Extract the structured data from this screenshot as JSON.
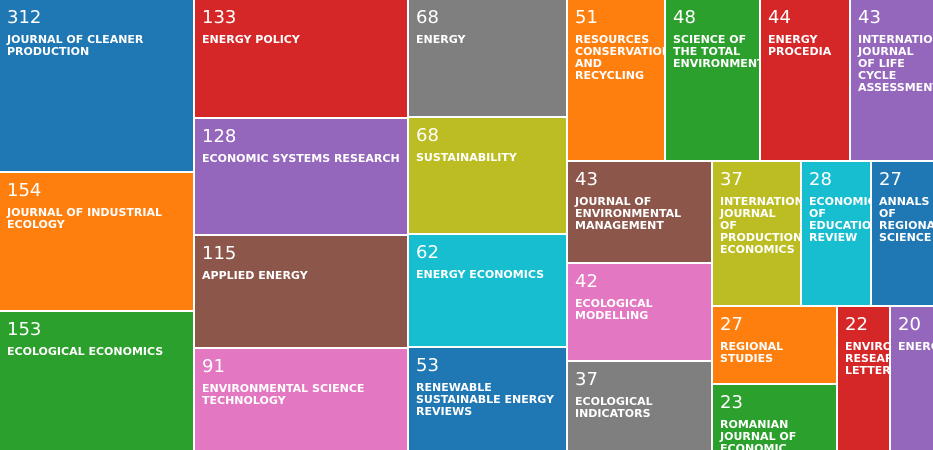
{
  "chart_data": {
    "type": "treemap",
    "items": [
      {
        "label": "JOURNAL OF CLEANER PRODUCTION",
        "value": 312,
        "color": "#1f77b4"
      },
      {
        "label": "JOURNAL OF INDUSTRIAL ECOLOGY",
        "value": 154,
        "color": "#ff7f0e"
      },
      {
        "label": "ECOLOGICAL ECONOMICS",
        "value": 153,
        "color": "#2ca02c"
      },
      {
        "label": "ENERGY POLICY",
        "value": 133,
        "color": "#d62728"
      },
      {
        "label": "ECONOMIC SYSTEMS RESEARCH",
        "value": 128,
        "color": "#9467bd"
      },
      {
        "label": "APPLIED ENERGY",
        "value": 115,
        "color": "#8c564b"
      },
      {
        "label": "ENVIRONMENTAL SCIENCE TECHNOLOGY",
        "value": 91,
        "color": "#e377c2"
      },
      {
        "label": "ENERGY",
        "value": 68,
        "color": "#7f7f7f"
      },
      {
        "label": "SUSTAINABILITY",
        "value": 68,
        "color": "#bcbd22"
      },
      {
        "label": "ENERGY ECONOMICS",
        "value": 62,
        "color": "#17becf"
      },
      {
        "label": "RENEWABLE SUSTAINABLE ENERGY REVIEWS",
        "value": 53,
        "color": "#1f77b4"
      },
      {
        "label": "RESOURCES CONSERVATION AND RECYCLING",
        "value": 51,
        "color": "#ff7f0e"
      },
      {
        "label": "SCIENCE OF THE TOTAL ENVIRONMENT",
        "value": 48,
        "color": "#2ca02c"
      },
      {
        "label": "ENERGY PROCEDIA",
        "value": 44,
        "color": "#d62728"
      },
      {
        "label": "INTERNATIONAL JOURNAL OF LIFE CYCLE ASSESSMENT",
        "value": 43,
        "color": "#9467bd"
      },
      {
        "label": "JOURNAL OF ENVIRONMENTAL MANAGEMENT",
        "value": 43,
        "color": "#8c564b"
      },
      {
        "label": "ECOLOGICAL MODELLING",
        "value": 42,
        "color": "#e377c2"
      },
      {
        "label": "ECOLOGICAL INDICATORS",
        "value": 37,
        "color": "#7f7f7f"
      },
      {
        "label": "INTERNATIONAL JOURNAL OF PRODUCTION ECONOMICS",
        "value": 37,
        "color": "#bcbd22"
      },
      {
        "label": "ECONOMICS OF EDUCATION REVIEW",
        "value": 28,
        "color": "#17becf"
      },
      {
        "label": "ANNALS OF REGIONAL SCIENCE",
        "value": 27,
        "color": "#1f77b4"
      },
      {
        "label": "REGIONAL STUDIES",
        "value": 27,
        "color": "#ff7f0e"
      },
      {
        "label": "ROMANIAN JOURNAL OF ECONOMIC",
        "value": 23,
        "color": "#2ca02c"
      },
      {
        "label": "ENVIRONMENTAL RESEARCH LETTERS",
        "value": 22,
        "color": "#d62728"
      },
      {
        "label": "ENERGIES",
        "value": 20,
        "color": "#9467bd"
      }
    ]
  }
}
